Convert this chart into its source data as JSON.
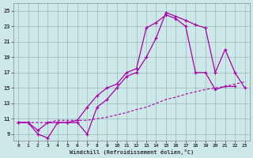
{
  "bg_color": "#cce8e8",
  "line_color": "#aa00aa",
  "xlabel": "Windchill (Refroidissement éolien,°C)",
  "xlim": [
    -0.5,
    23.5
  ],
  "ylim": [
    8.2,
    26.0
  ],
  "xticks": [
    0,
    1,
    2,
    3,
    4,
    5,
    6,
    7,
    8,
    9,
    10,
    11,
    12,
    13,
    14,
    15,
    16,
    17,
    18,
    19,
    20,
    21,
    22,
    23
  ],
  "yticks": [
    9,
    11,
    13,
    15,
    17,
    19,
    21,
    23,
    25
  ],
  "grid_color": "#99bbbb",
  "line1_x": [
    0,
    1,
    2,
    3,
    4,
    5,
    6,
    7,
    8,
    9,
    10,
    11,
    12,
    13,
    14,
    15,
    16,
    17,
    18,
    19,
    20,
    21,
    22,
    23
  ],
  "line1_y": [
    10.5,
    10.5,
    9.0,
    8.5,
    10.5,
    10.5,
    10.5,
    9.0,
    12.5,
    13.5,
    15.0,
    16.5,
    17.0,
    19.0,
    21.5,
    24.8,
    24.3,
    23.8,
    23.2,
    22.8,
    17.0,
    20.0,
    17.0,
    15.0
  ],
  "line2_x": [
    0,
    1,
    2,
    3,
    4,
    5,
    6,
    7,
    8,
    9,
    10,
    11,
    12,
    13,
    14,
    15,
    16,
    17,
    18,
    19,
    20,
    21,
    22
  ],
  "line2_y": [
    10.5,
    10.5,
    9.5,
    10.5,
    10.5,
    10.5,
    10.8,
    12.5,
    14.0,
    15.0,
    15.5,
    17.0,
    17.5,
    22.8,
    23.5,
    24.5,
    24.0,
    23.0,
    17.0,
    17.0,
    14.8,
    15.2,
    15.2
  ],
  "line3_x": [
    0,
    1,
    2,
    3,
    4,
    5,
    6,
    7,
    8,
    9,
    10,
    11,
    12,
    13,
    14,
    15,
    16,
    17,
    18,
    19,
    20,
    21,
    22,
    23
  ],
  "line3_y": [
    10.5,
    10.5,
    10.5,
    10.5,
    10.8,
    10.8,
    10.8,
    10.8,
    11.0,
    11.2,
    11.5,
    11.8,
    12.2,
    12.5,
    13.0,
    13.5,
    13.8,
    14.2,
    14.5,
    14.8,
    15.0,
    15.2,
    15.5,
    15.8
  ]
}
